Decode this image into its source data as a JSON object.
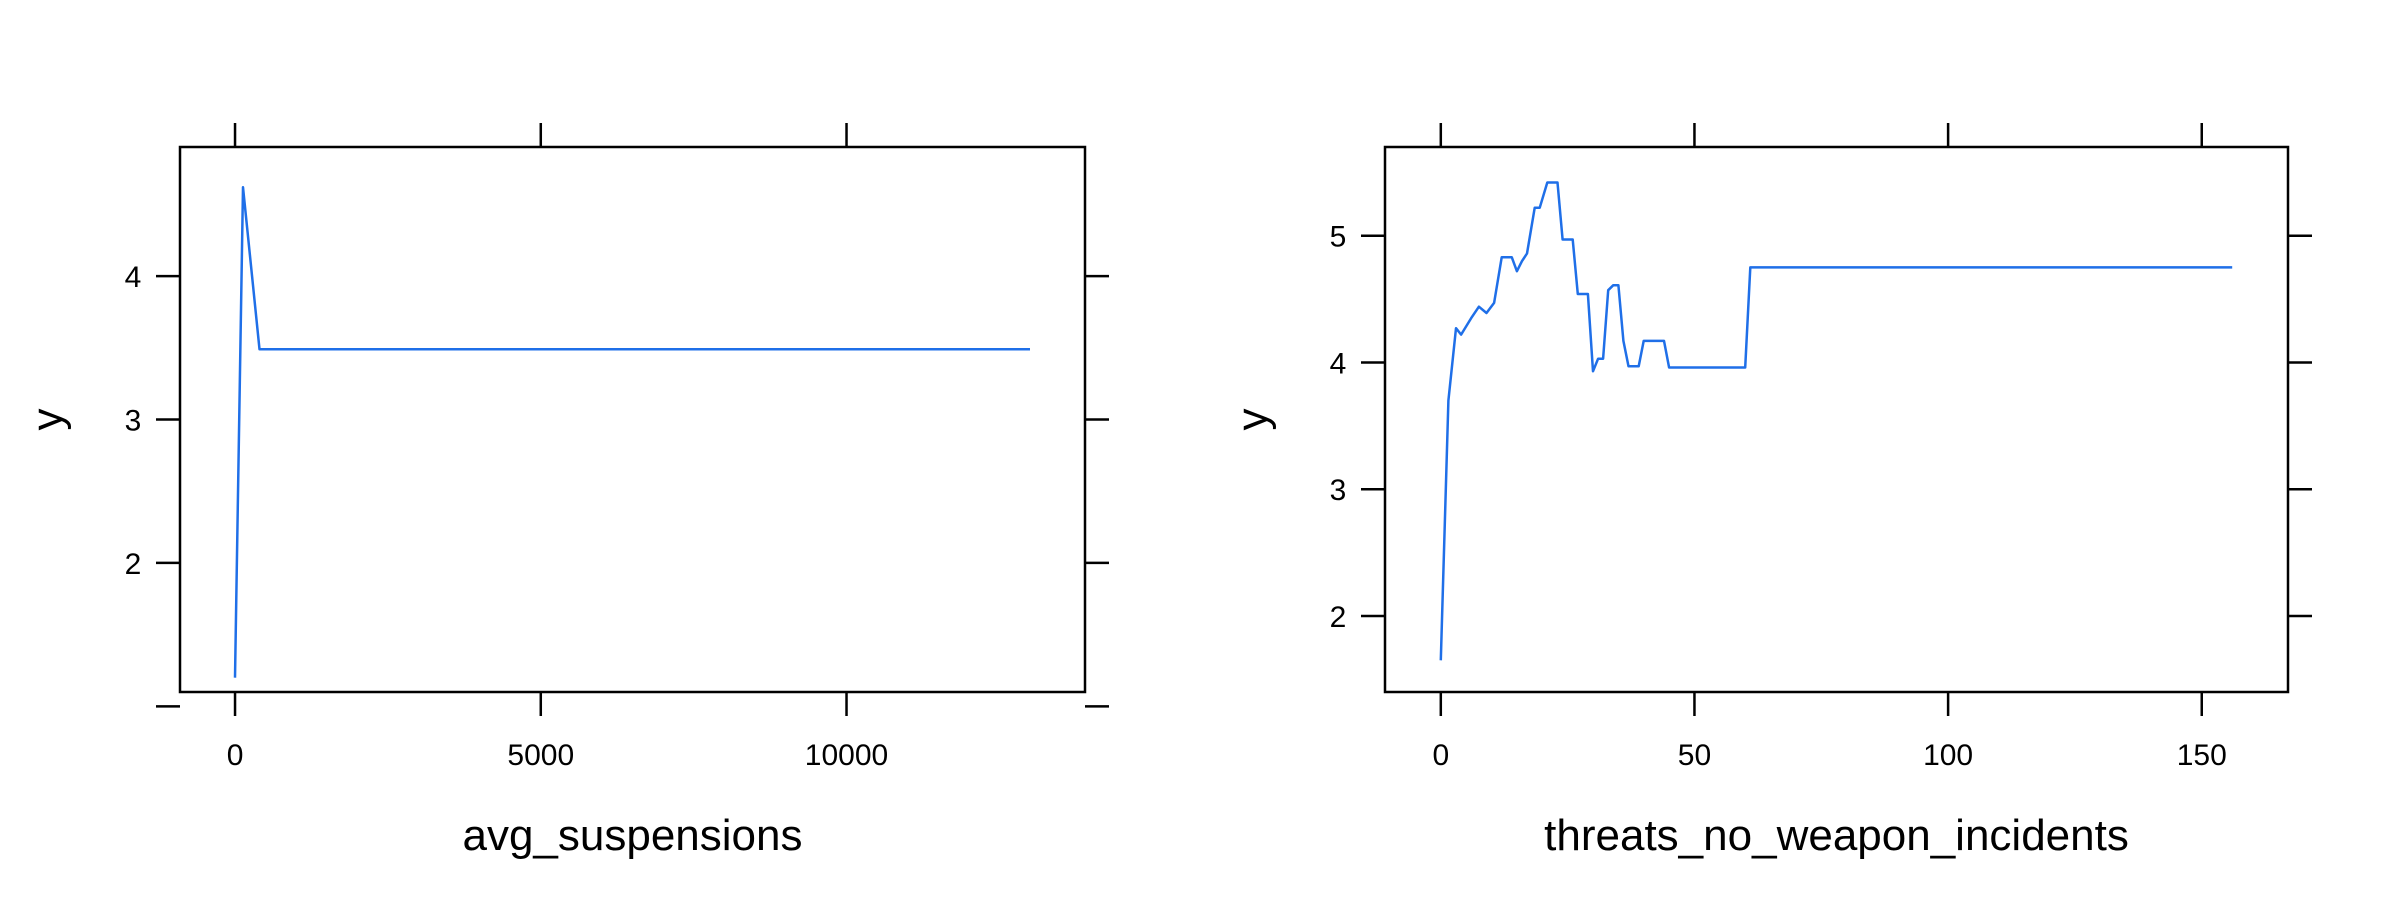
{
  "chart_data": [
    {
      "type": "line",
      "title": "",
      "xlabel": "avg_suspensions",
      "ylabel": "y",
      "xlim": [
        -900,
        13900
      ],
      "ylim": [
        1.1,
        4.9
      ],
      "xticks": [
        0,
        5000,
        10000
      ],
      "xtick_labels": [
        "0",
        "5000",
        "10000"
      ],
      "yticks": [
        1,
        2,
        3,
        4
      ],
      "ytick_labels": [
        "",
        "2",
        "3",
        "4"
      ],
      "color": "#1f6fe8",
      "grid": false,
      "legend": "none",
      "x": [
        0,
        130,
        400,
        13000
      ],
      "y": [
        1.2,
        4.62,
        3.49,
        3.49
      ]
    },
    {
      "type": "line",
      "title": "",
      "xlabel": "threats_no_weapon_incidents",
      "ylabel": "y",
      "xlim": [
        -11,
        167
      ],
      "ylim": [
        1.4,
        5.7
      ],
      "xticks": [
        0,
        50,
        100,
        150
      ],
      "xtick_labels": [
        "0",
        "50",
        "100",
        "150"
      ],
      "yticks": [
        2,
        3,
        4,
        5
      ],
      "ytick_labels": [
        "2",
        "3",
        "4",
        "5"
      ],
      "color": "#1f6fe8",
      "grid": false,
      "legend": "none",
      "x": [
        0,
        1.5,
        3,
        4,
        6,
        7.5,
        9,
        10.5,
        12,
        13,
        14,
        15,
        16,
        17,
        18.5,
        19.5,
        21,
        22,
        23,
        24,
        25,
        26,
        27,
        28,
        29,
        30,
        31,
        32,
        33,
        34,
        35,
        36,
        37,
        38,
        39,
        40,
        41,
        42,
        43,
        44,
        45,
        46,
        47,
        48,
        49,
        50,
        51,
        52,
        53,
        54,
        55,
        56,
        57,
        58,
        59,
        60,
        61,
        62,
        63,
        64,
        65,
        66,
        67,
        68,
        69,
        70,
        71,
        72,
        73,
        74,
        75,
        80,
        90,
        100,
        110,
        120,
        130,
        140,
        150,
        156
      ],
      "y": [
        1.65,
        3.7,
        4.27,
        4.22,
        4.35,
        4.44,
        4.39,
        4.47,
        4.83,
        4.83,
        4.83,
        4.72,
        4.8,
        4.86,
        5.22,
        5.22,
        5.42,
        5.42,
        5.42,
        4.97,
        4.97,
        4.97,
        4.54,
        4.54,
        4.54,
        3.93,
        4.03,
        4.03,
        4.57,
        4.61,
        4.61,
        4.17,
        3.97,
        3.97,
        3.97,
        4.17,
        4.17,
        4.17,
        4.17,
        4.17,
        3.96,
        3.96,
        3.96,
        3.96,
        3.96,
        3.96,
        3.96,
        3.96,
        3.96,
        3.96,
        3.96,
        3.96,
        3.96,
        3.96,
        3.96,
        3.96,
        4.75,
        4.75,
        4.75,
        4.75,
        4.75,
        4.75,
        4.75,
        4.75,
        4.75,
        4.75,
        4.75,
        4.75,
        4.75,
        4.75,
        4.75,
        4.75,
        4.75,
        4.75,
        4.75,
        4.75,
        4.75,
        4.75,
        4.75,
        4.75
      ]
    }
  ]
}
